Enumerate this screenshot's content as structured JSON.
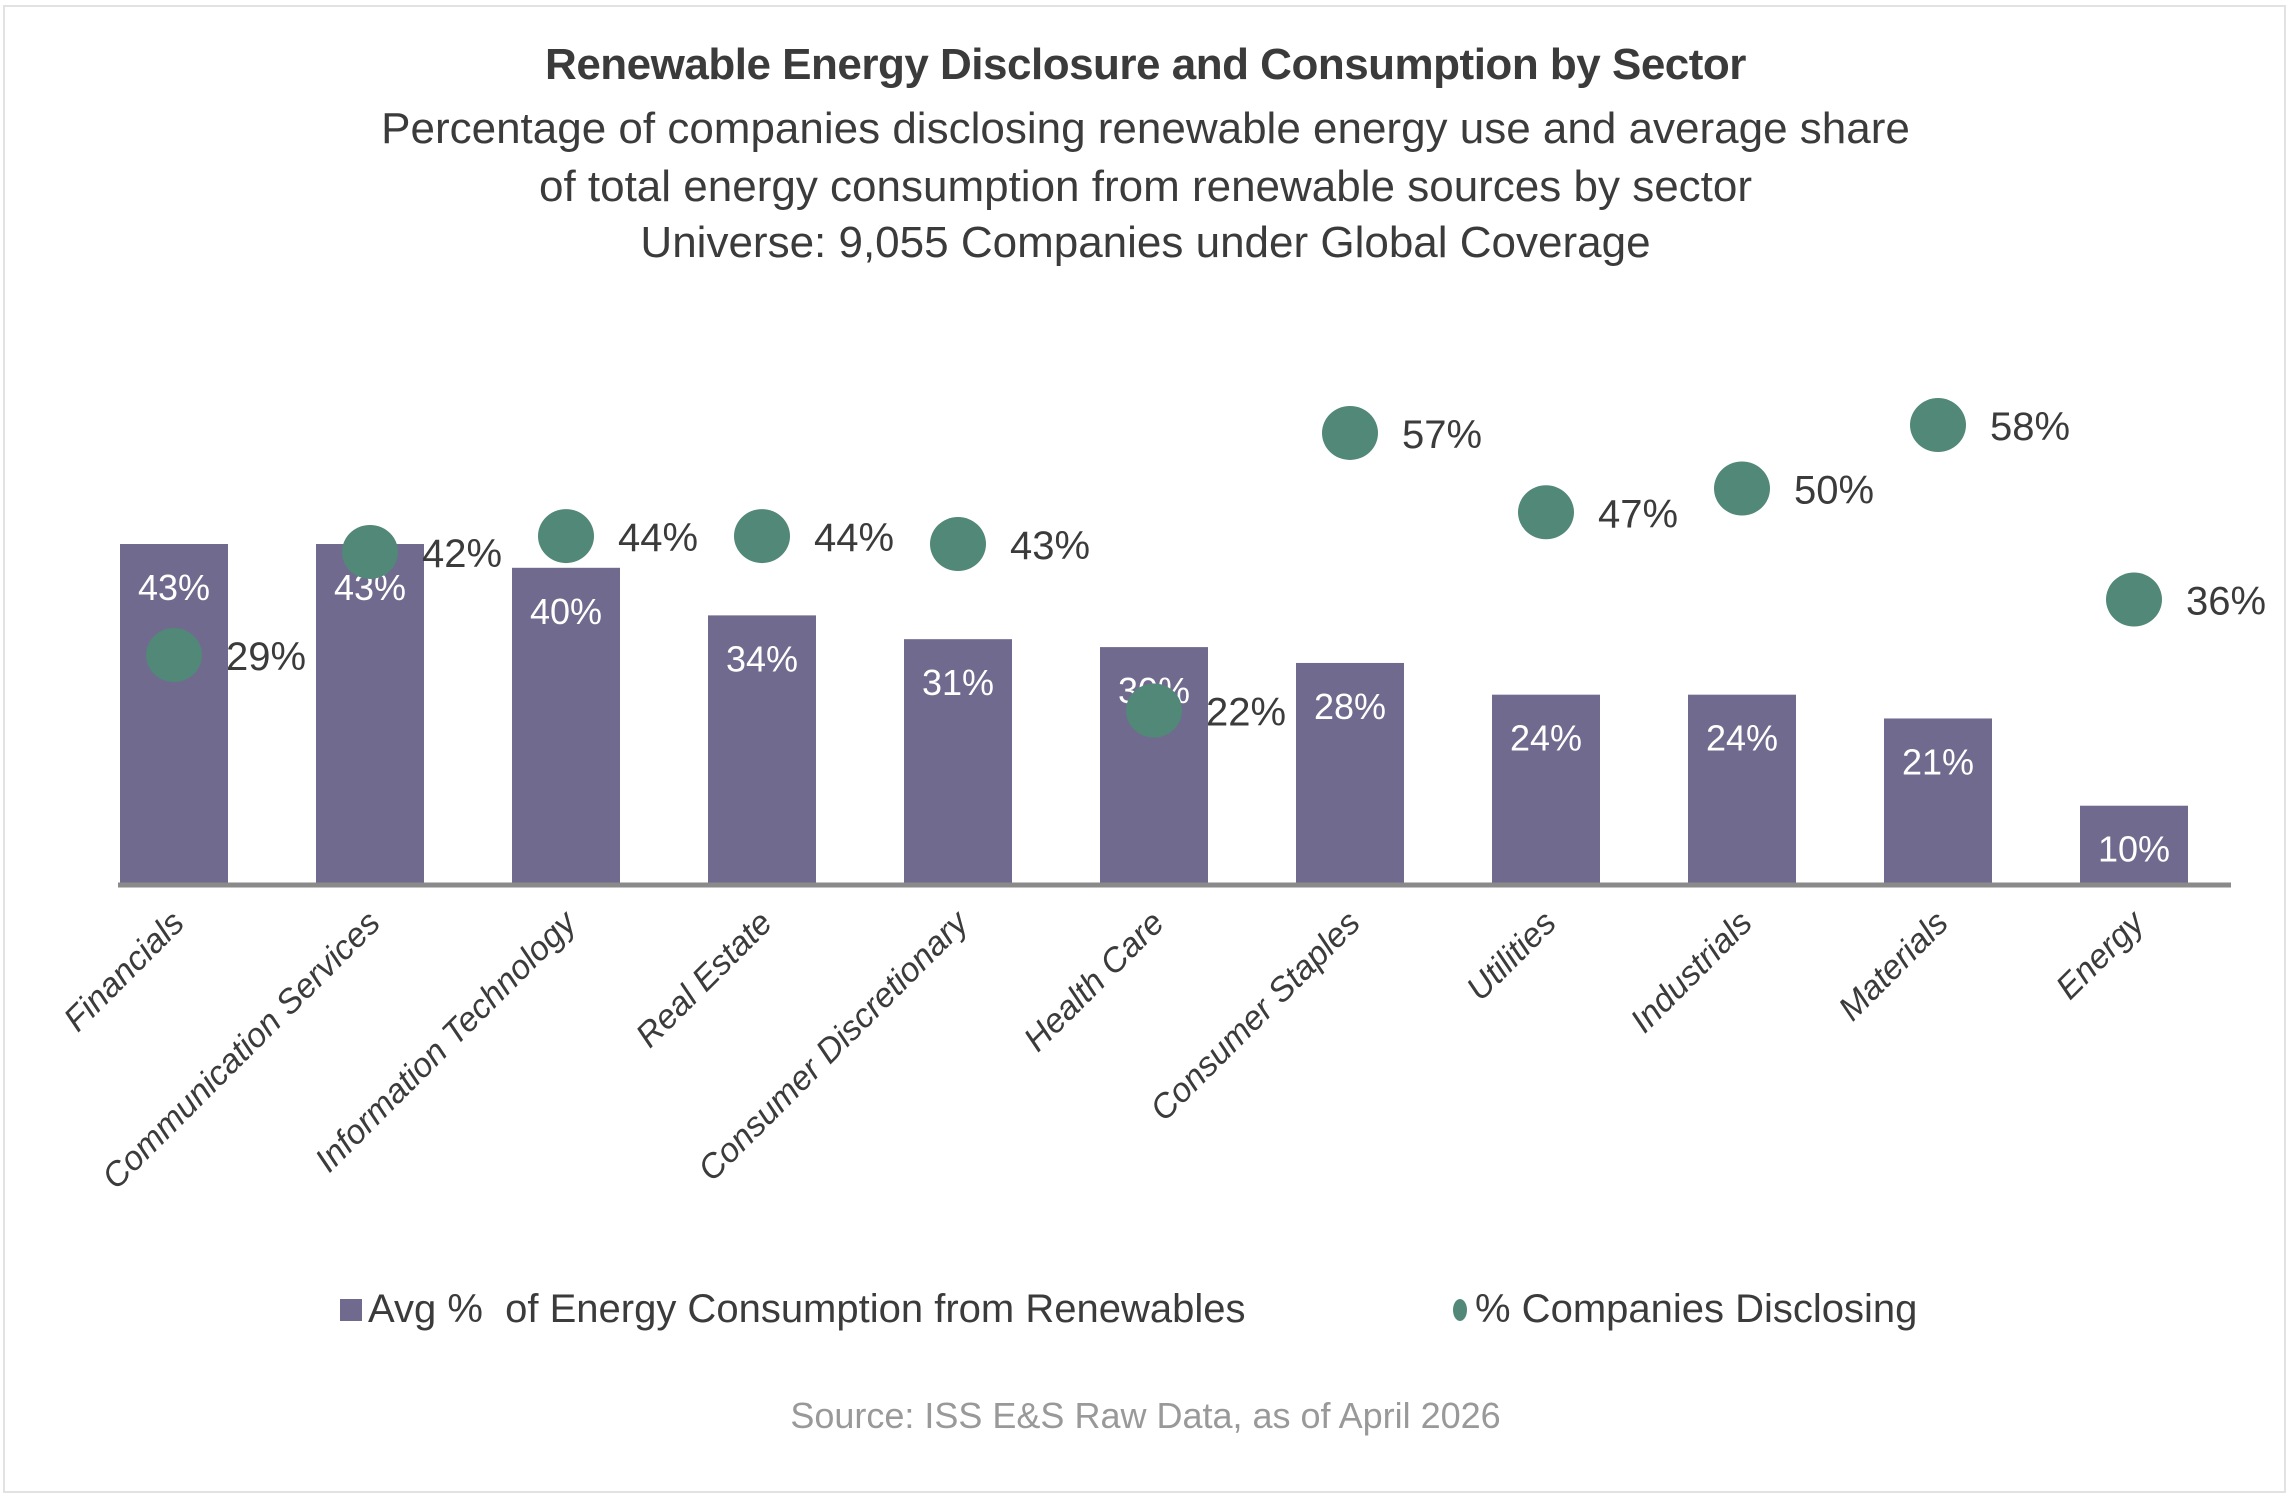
{
  "colors": {
    "bar": "#706a8e",
    "dot": "#528878",
    "axis": "#8a8a8a",
    "text": "#3b3b3b",
    "bar_label": "#ffffff",
    "source": "#999999"
  },
  "chart_data": {
    "type": "bar",
    "title": "Renewable Energy Disclosure and Consumption by Sector",
    "subtitle_lines": [
      "Percentage of companies disclosing renewable energy use and average share",
      "of total energy consumption from renewable sources by sector",
      "Universe: 9,055 Companies under Global Coverage"
    ],
    "xlabel": "",
    "ylabel": "",
    "ylim": [
      0,
      60
    ],
    "grid": false,
    "y_axis_visible": false,
    "categories": [
      "Financials",
      "Communication Services",
      "Information Technology",
      "Real Estate",
      "Consumer Discretionary",
      "Health Care",
      "Consumer Staples",
      "Utilities",
      "Industrials",
      "Materials",
      "Energy"
    ],
    "series": [
      {
        "name": "Avg %  of Energy Consumption from Renewables",
        "type": "bar",
        "values": [
          43,
          43,
          40,
          34,
          31,
          30,
          28,
          24,
          24,
          21,
          10
        ],
        "labels": [
          "43%",
          "43%",
          "40%",
          "34%",
          "31%",
          "30%",
          "28%",
          "24%",
          "24%",
          "21%",
          "10%"
        ]
      },
      {
        "name": "% Companies Disclosing",
        "type": "scatter",
        "values": [
          29,
          42,
          44,
          44,
          43,
          22,
          57,
          47,
          50,
          58,
          36
        ],
        "labels": [
          "29%",
          "42%",
          "44%",
          "44%",
          "43%",
          "22%",
          "57%",
          "47%",
          "50%",
          "58%",
          "36%"
        ]
      }
    ],
    "legend": {
      "placement": "bottom",
      "entries": [
        {
          "label": "Avg %  of Energy Consumption from Renewables",
          "marker": "square"
        },
        {
          "label": "% Companies Disclosing",
          "marker": "circle"
        }
      ]
    },
    "source": "Source: ISS E&S Raw Data, as of April 2026"
  }
}
